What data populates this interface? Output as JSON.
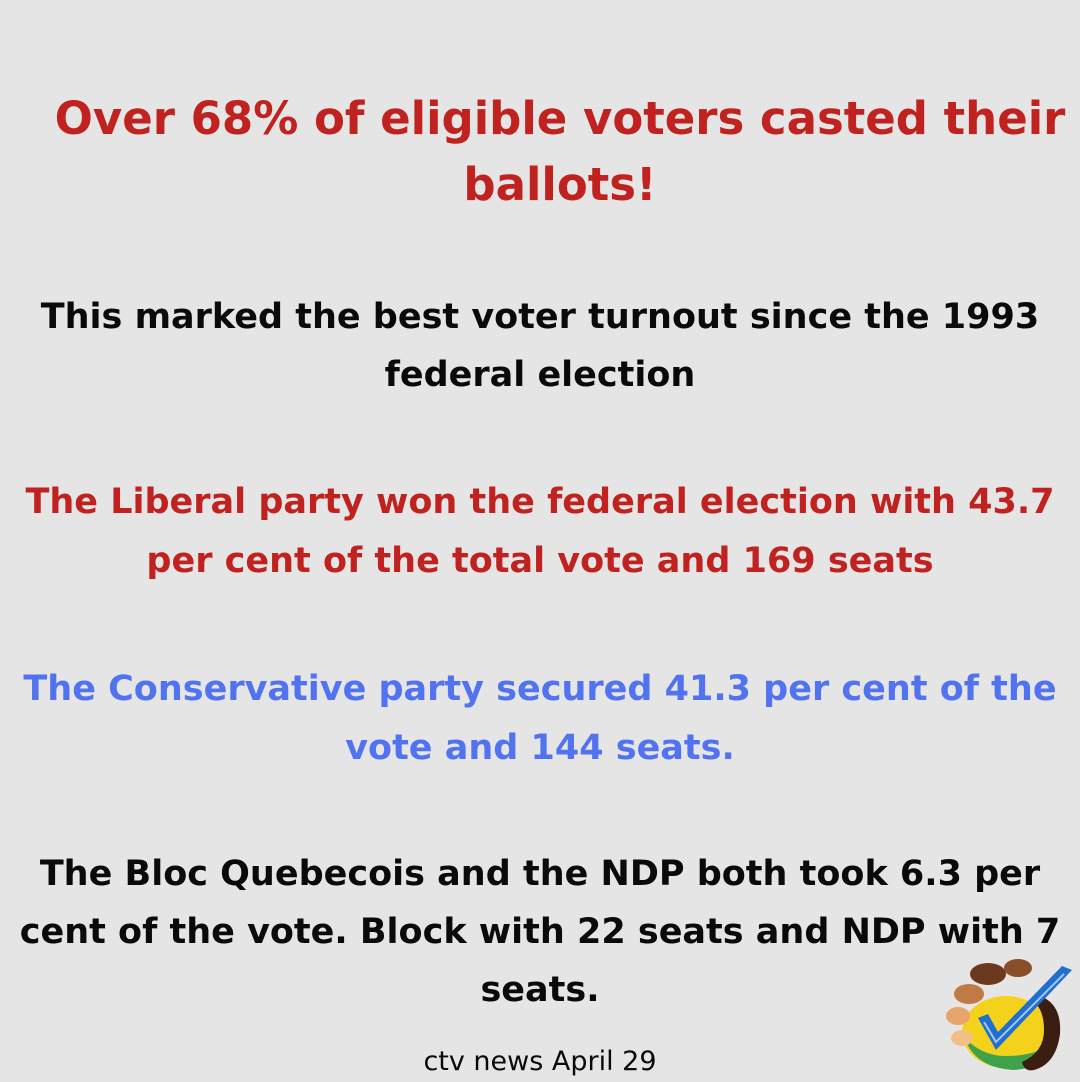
{
  "colors": {
    "background": "#e6e5e5",
    "red": "#c0221f",
    "blue": "#5273f0",
    "black": "#0a0a0a"
  },
  "headline": "Over 68% of eligible voters casted their ballots!",
  "turnout": "This marked the best voter turnout since the 1993 federal election",
  "liberal": "The Liberal party won the federal election with 43.7 per cent of the total vote and 169 seats",
  "conservative": "The Conservative party secured 41.3 per cent of the vote and 144 seats.",
  "bloc_ndp": "The Bloc Quebecois and the NDP both took 6.3 per cent of the vote. Block with 22 seats and NDP with 7 seats.",
  "source": "ctv news April 29",
  "logo_icon": "hands-checkmark-logo-icon"
}
